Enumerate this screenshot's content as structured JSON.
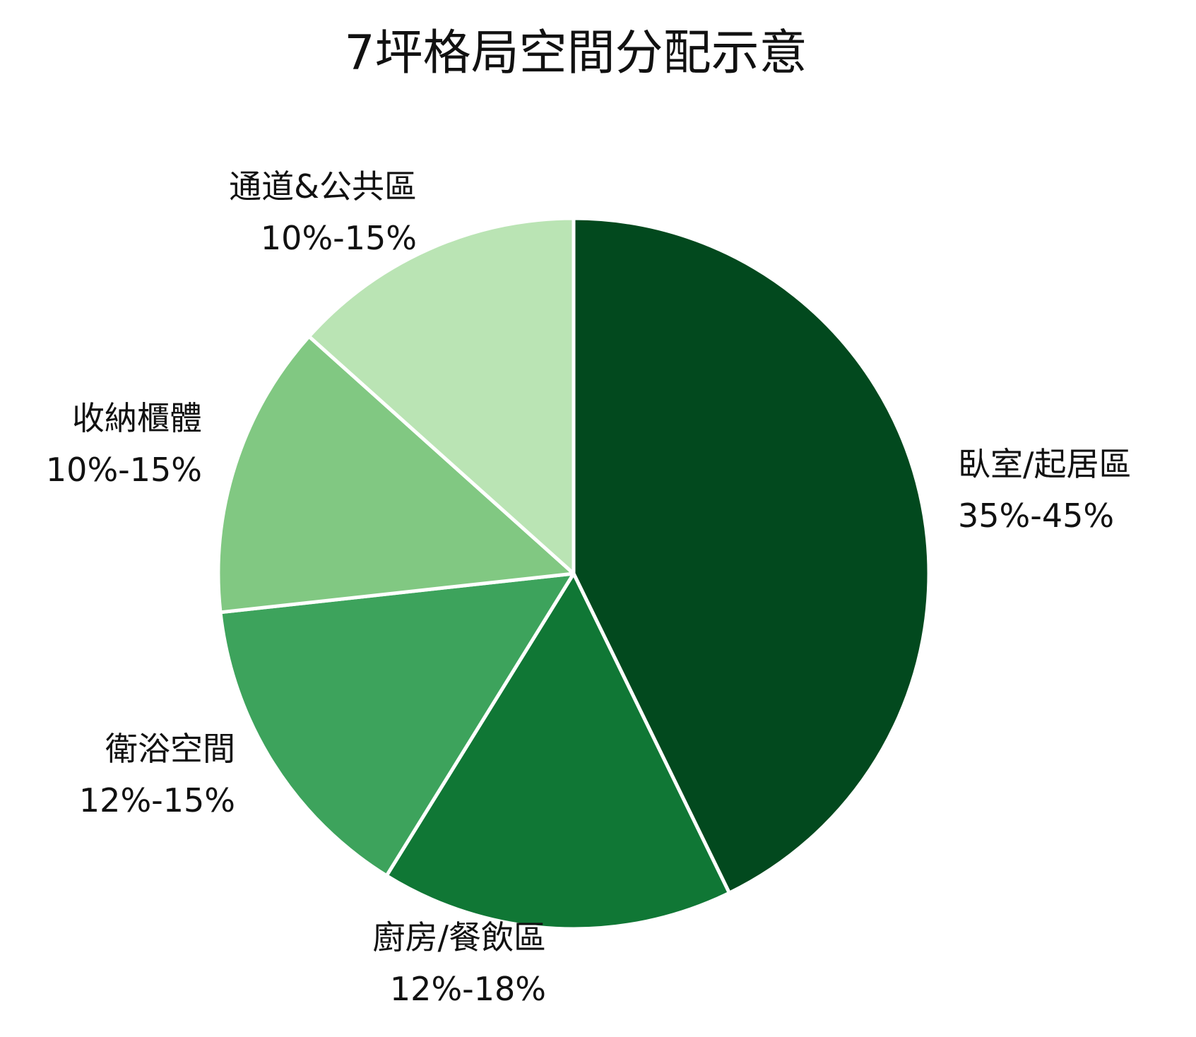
{
  "chart_data": {
    "type": "pie",
    "title": "7坪格局空間分配示意",
    "slices": [
      {
        "label": "臥室/起居區",
        "range": "35%-45%",
        "value": 40,
        "color": "#02491e"
      },
      {
        "label": "廚房/餐飲區",
        "range": "12%-18%",
        "value": 15,
        "color": "#107735"
      },
      {
        "label": "衛浴空間",
        "range": "12%-15%",
        "value": 13.5,
        "color": "#3da35c"
      },
      {
        "label": "收納櫃體",
        "range": "10%-15%",
        "value": 12.5,
        "color": "#81c882"
      },
      {
        "label": "通道&公共區",
        "range": "10%-15%",
        "value": 12.5,
        "color": "#bae4b4"
      }
    ],
    "start_angle": "12 o'clock",
    "direction": "clockwise",
    "slice_border_color": "#ffffff"
  }
}
